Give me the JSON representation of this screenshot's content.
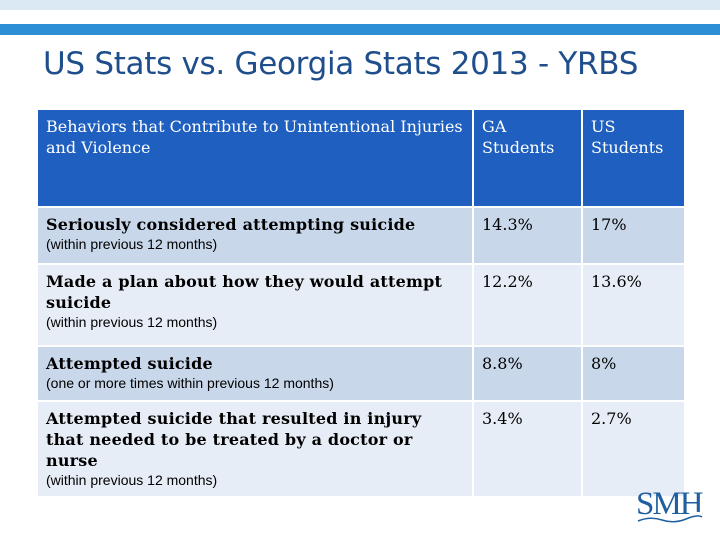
{
  "slide": {
    "title": "US Stats vs. Georgia Stats 2013 - YRBS"
  },
  "table": {
    "headers": [
      "Behaviors that Contribute to Unintentional Injuries and Violence",
      "GA Students",
      "US Students"
    ],
    "rows": [
      {
        "behavior": "Seriously considered attempting suicide",
        "note": "(within previous 12 months)",
        "ga": "14.3%",
        "us": "17%"
      },
      {
        "behavior": "Made a plan about how they would attempt suicide",
        "note": "(within previous 12 months)",
        "ga": "12.2%",
        "us": "13.6%"
      },
      {
        "behavior": "Attempted suicide",
        "note": "(one or more times within previous 12 months)",
        "ga": "8.8%",
        "us": "8%"
      },
      {
        "behavior": "Attempted suicide that resulted in injury that needed to be treated by a doctor or nurse",
        "note": "(within previous 12 months)",
        "ga": "3.4%",
        "us": "2.7%"
      }
    ]
  },
  "logo": {
    "text": "SMH"
  },
  "colors": {
    "header_bg": "#1f5fbf",
    "row_dark": "#c9d7ea",
    "row_light": "#e7edf6",
    "title": "#1f4e8c",
    "accent_bar": "#2c8fd6"
  }
}
